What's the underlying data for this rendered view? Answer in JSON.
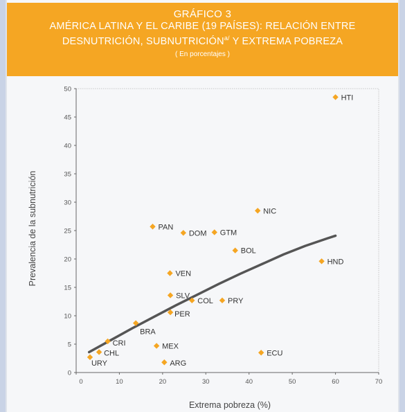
{
  "header": {
    "title_line1": "GRÁFICO 3",
    "title_line2": "AMÉRICA LATINA Y EL CARIBE (19 PAÍSES): RELACIÓN ENTRE",
    "title_line3_a": "DESNUTRICIÓN, SUBNUTRICIÓN",
    "title_line3_sup": "a/",
    "title_line3_b": " Y EXTREMA POBREZA",
    "subtitle": "( En porcentajes )"
  },
  "colors": {
    "header_bg": "#f5a623",
    "marker": "#f5a623",
    "trend": "#555555"
  },
  "chart_data": {
    "type": "scatter",
    "xlabel": "Extrema pobreza (%)",
    "ylabel": "Prevalencia de la subnutrición",
    "xlim": [
      0,
      70
    ],
    "ylim": [
      0,
      50
    ],
    "xticks": [
      0,
      10,
      20,
      30,
      40,
      50,
      60,
      70
    ],
    "yticks": [
      0,
      5,
      10,
      15,
      20,
      25,
      30,
      35,
      40,
      45,
      50
    ],
    "grid": false,
    "points": [
      {
        "label": "HTI",
        "x": 60.0,
        "y": 48.5
      },
      {
        "label": "NIC",
        "x": 42.0,
        "y": 28.5
      },
      {
        "label": "PAN",
        "x": 17.7,
        "y": 25.7
      },
      {
        "label": "DOM",
        "x": 24.8,
        "y": 24.6
      },
      {
        "label": "GTM",
        "x": 32.0,
        "y": 24.7
      },
      {
        "label": "BOL",
        "x": 36.8,
        "y": 21.5
      },
      {
        "label": "HND",
        "x": 56.8,
        "y": 19.6
      },
      {
        "label": "VEN",
        "x": 21.7,
        "y": 17.5
      },
      {
        "label": "SLV",
        "x": 21.8,
        "y": 13.6
      },
      {
        "label": "COL",
        "x": 26.8,
        "y": 12.7
      },
      {
        "label": "PRY",
        "x": 33.8,
        "y": 12.7
      },
      {
        "label": "PER",
        "x": 21.8,
        "y": 10.6
      },
      {
        "label": "BRA",
        "x": 13.8,
        "y": 8.7
      },
      {
        "label": "CRI",
        "x": 7.3,
        "y": 5.5
      },
      {
        "label": "MEX",
        "x": 18.6,
        "y": 4.7
      },
      {
        "label": "CHL",
        "x": 5.3,
        "y": 3.6
      },
      {
        "label": "ECU",
        "x": 42.8,
        "y": 3.5
      },
      {
        "label": "URY",
        "x": 3.2,
        "y": 2.7
      },
      {
        "label": "ARG",
        "x": 20.4,
        "y": 1.8
      }
    ],
    "trendline": {
      "x": [
        3,
        8,
        13,
        18,
        23,
        28,
        33,
        38,
        43,
        48,
        53,
        58,
        60
      ],
      "y": [
        3.6,
        5.7,
        7.8,
        9.8,
        11.8,
        13.7,
        15.6,
        17.4,
        19.1,
        20.8,
        22.3,
        23.6,
        24.1
      ]
    }
  }
}
